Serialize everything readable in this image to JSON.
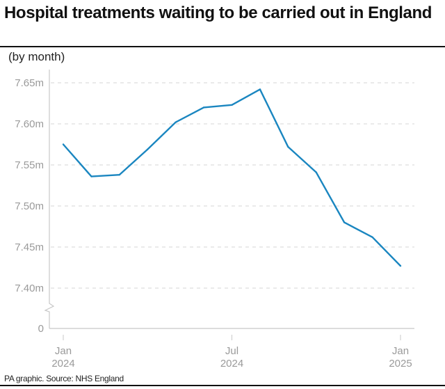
{
  "title": "Hospital treatments waiting to be carried out in England",
  "subtitle": "(by month)",
  "source": "PA graphic. Source: NHS England",
  "chart_data": {
    "type": "line",
    "title": "Hospital treatments waiting to be carried out in England",
    "subtitle": "(by month)",
    "x": [
      "2024-01",
      "2024-02",
      "2024-03",
      "2024-04",
      "2024-05",
      "2024-06",
      "2024-07",
      "2024-08",
      "2024-09",
      "2024-10",
      "2024-11",
      "2024-12",
      "2025-01"
    ],
    "series": [
      {
        "values": [
          7.575,
          7.536,
          7.538,
          7.569,
          7.602,
          7.62,
          7.623,
          7.642,
          7.572,
          7.541,
          7.48,
          7.462,
          7.427
        ],
        "color": "#1a86c0"
      }
    ],
    "ylim": [
      7.4,
      7.65
    ],
    "y_axis_break": true,
    "yticks": [
      {
        "value": 7.65,
        "label": "7.65m"
      },
      {
        "value": 7.6,
        "label": "7.60m"
      },
      {
        "value": 7.55,
        "label": "7.55m"
      },
      {
        "value": 7.5,
        "label": "7.50m"
      },
      {
        "value": 7.45,
        "label": "7.45m"
      },
      {
        "value": 7.4,
        "label": "7.40m"
      },
      {
        "value": 0,
        "label": "0"
      }
    ],
    "xticks": [
      {
        "index": 0,
        "line1": "Jan",
        "line2": "2024"
      },
      {
        "index": 6,
        "line1": "Jul",
        "line2": "2024"
      },
      {
        "index": 12,
        "line1": "Jan",
        "line2": "2025"
      }
    ],
    "grid": "horizontal dashed",
    "legend": "none"
  }
}
